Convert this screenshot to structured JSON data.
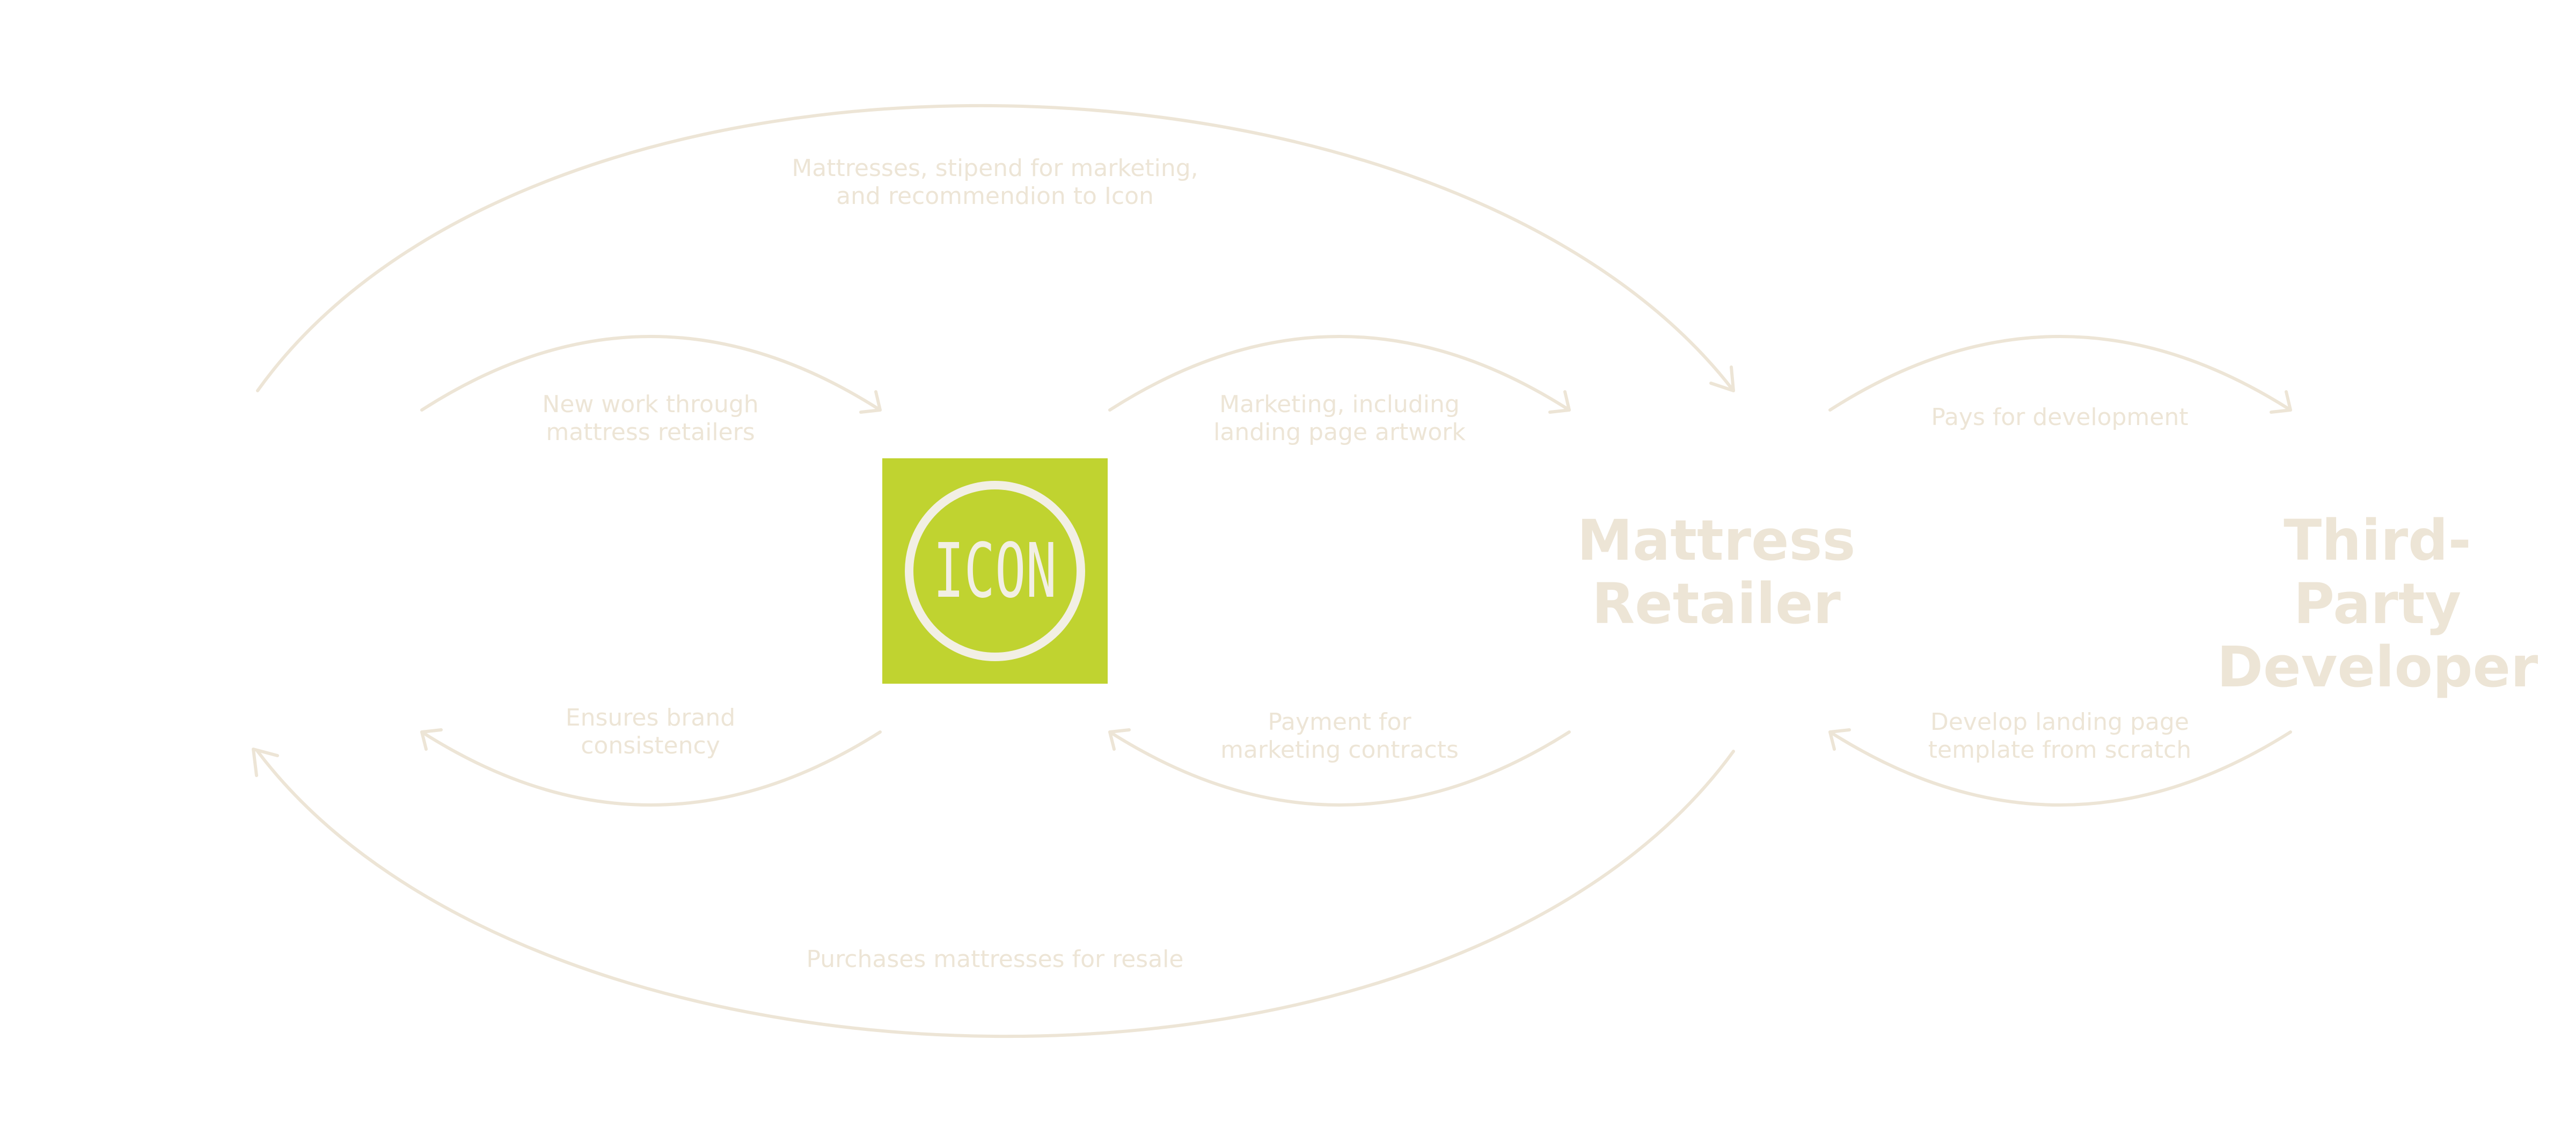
{
  "colors": {
    "brand": "#c0d330",
    "line": "#ede5d6",
    "logo_fg": "#f2efe4"
  },
  "logo": {
    "text": "ICON",
    "icon": "icon-logo-ring"
  },
  "nodes": {
    "mattress_retailer": "Mattress\nRetailer",
    "third_party_developer": "Third-Party\nDeveloper"
  },
  "flows": {
    "top_outer": "Mattresses, stipend for marketing,\nand recommendion to Icon",
    "left_top": "New work through\nmattress retailers",
    "left_bottom": "Ensures brand\nconsistency",
    "mid_top": "Marketing, including\nlanding page artwork",
    "mid_bottom": "Payment for\nmarketing contracts",
    "right_top": "Pays for development",
    "right_bottom": "Develop landing page\ntemplate from scratch",
    "bottom_outer": "Purchases mattresses for resale"
  }
}
